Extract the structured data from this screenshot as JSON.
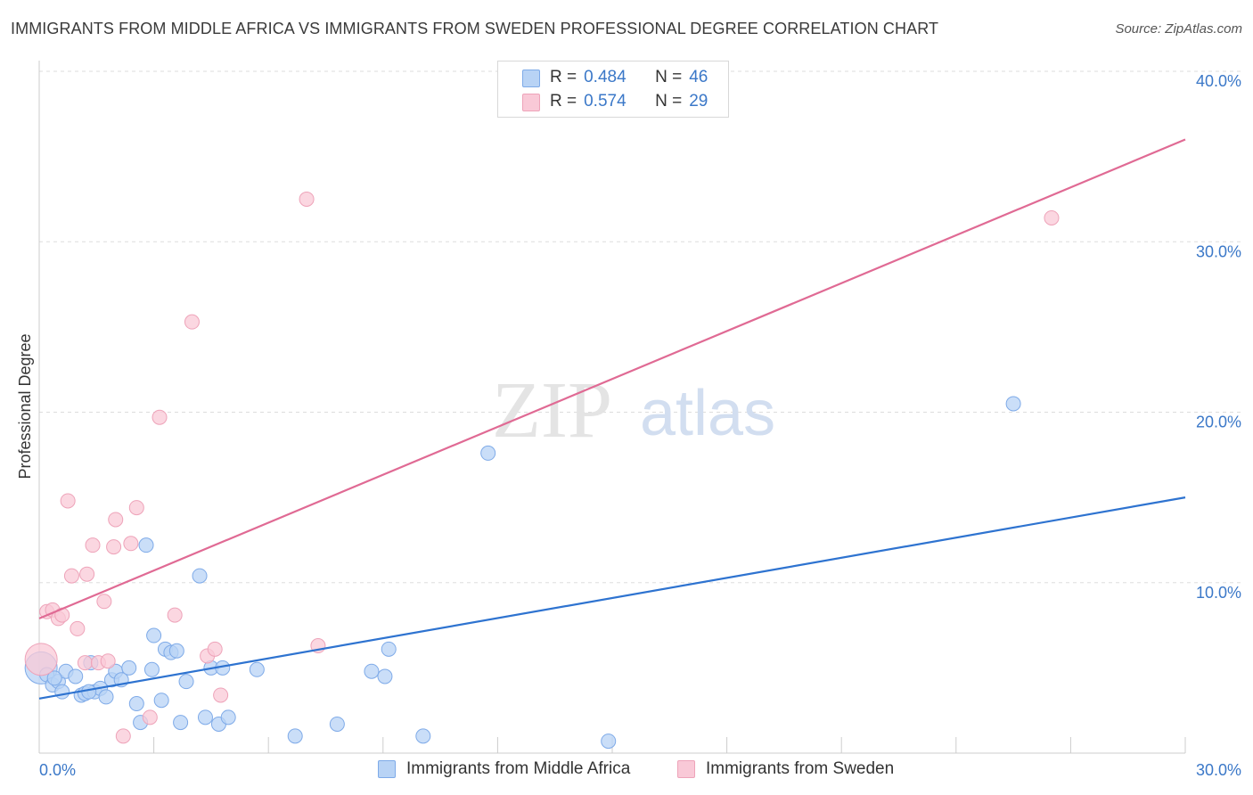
{
  "header": {
    "title": "IMMIGRANTS FROM MIDDLE AFRICA VS IMMIGRANTS FROM SWEDEN PROFESSIONAL DEGREE CORRELATION CHART",
    "source": "Source: ZipAtlas.com"
  },
  "watermark": {
    "zip": "ZIP",
    "atlas": "atlas"
  },
  "legend": {
    "r_label": "R =",
    "n_label": "N =",
    "rows": [
      {
        "r": "0.484",
        "n": "46"
      },
      {
        "r": "0.574",
        "n": "29"
      }
    ]
  },
  "colors": {
    "blue_fill": "#b8d3f5",
    "blue_stroke": "#7eaae8",
    "blue_line": "#2e73d0",
    "pink_fill": "#f9c9d7",
    "pink_stroke": "#eea3b9",
    "pink_line": "#e06a94",
    "tick_text": "#3b78c8",
    "grid": "#dddddd"
  },
  "chart_data": {
    "type": "scatter",
    "title": "IMMIGRANTS FROM MIDDLE AFRICA VS IMMIGRANTS FROM SWEDEN PROFESSIONAL DEGREE CORRELATION CHART",
    "xlabel": "",
    "ylabel": "Professional Degree",
    "xlim": [
      0,
      30
    ],
    "ylim": [
      0,
      40
    ],
    "x_tick_labels": [
      "0.0%",
      "30.0%"
    ],
    "y_ticks": [
      10,
      20,
      30,
      40
    ],
    "y_tick_labels": [
      "10.0%",
      "20.0%",
      "30.0%",
      "40.0%"
    ],
    "grid": true,
    "legend_position": "top-center",
    "series": [
      {
        "name": "Immigrants from Middle Africa",
        "color": "#b8d3f5",
        "r": 0.484,
        "n": 46,
        "trend": {
          "x": [
            0,
            30
          ],
          "y": [
            3.2,
            15.0
          ]
        },
        "points": [
          [
            0.05,
            5.0
          ],
          [
            0.2,
            4.6
          ],
          [
            0.35,
            4.0
          ],
          [
            0.5,
            4.2
          ],
          [
            0.6,
            3.6
          ],
          [
            0.7,
            4.8
          ],
          [
            0.95,
            4.5
          ],
          [
            1.1,
            3.4
          ],
          [
            1.2,
            3.5
          ],
          [
            1.35,
            5.3
          ],
          [
            1.45,
            3.6
          ],
          [
            1.6,
            3.8
          ],
          [
            1.75,
            3.3
          ],
          [
            1.9,
            4.3
          ],
          [
            2.0,
            4.8
          ],
          [
            2.15,
            4.3
          ],
          [
            2.35,
            5.0
          ],
          [
            2.55,
            2.9
          ],
          [
            2.65,
            1.8
          ],
          [
            2.8,
            12.2
          ],
          [
            2.95,
            4.9
          ],
          [
            3.0,
            6.9
          ],
          [
            3.2,
            3.1
          ],
          [
            3.3,
            6.1
          ],
          [
            3.45,
            5.9
          ],
          [
            3.6,
            6.0
          ],
          [
            3.7,
            1.8
          ],
          [
            3.85,
            4.2
          ],
          [
            4.2,
            10.4
          ],
          [
            4.35,
            2.1
          ],
          [
            4.5,
            5.0
          ],
          [
            4.7,
            1.7
          ],
          [
            4.8,
            5.0
          ],
          [
            4.95,
            2.1
          ],
          [
            5.7,
            4.9
          ],
          [
            6.7,
            1.0
          ],
          [
            7.8,
            1.7
          ],
          [
            8.7,
            4.8
          ],
          [
            9.05,
            4.5
          ],
          [
            9.15,
            6.1
          ],
          [
            10.05,
            1.0
          ],
          [
            11.75,
            17.6
          ],
          [
            14.9,
            0.7
          ],
          [
            25.5,
            20.5
          ],
          [
            0.4,
            4.4
          ],
          [
            1.3,
            3.6
          ]
        ]
      },
      {
        "name": "Immigrants from Sweden",
        "color": "#f9c9d7",
        "r": 0.574,
        "n": 29,
        "trend": {
          "x": [
            0,
            30
          ],
          "y": [
            7.9,
            36.0
          ]
        },
        "points": [
          [
            0.05,
            5.5
          ],
          [
            0.2,
            8.3
          ],
          [
            0.35,
            8.4
          ],
          [
            0.5,
            7.9
          ],
          [
            0.6,
            8.1
          ],
          [
            0.75,
            14.8
          ],
          [
            0.85,
            10.4
          ],
          [
            1.0,
            7.3
          ],
          [
            1.2,
            5.3
          ],
          [
            1.25,
            10.5
          ],
          [
            1.4,
            12.2
          ],
          [
            1.55,
            5.3
          ],
          [
            1.7,
            8.9
          ],
          [
            1.8,
            5.4
          ],
          [
            1.95,
            12.1
          ],
          [
            2.0,
            13.7
          ],
          [
            2.2,
            1.0
          ],
          [
            2.4,
            12.3
          ],
          [
            2.55,
            14.4
          ],
          [
            2.9,
            2.1
          ],
          [
            3.15,
            19.7
          ],
          [
            3.55,
            8.1
          ],
          [
            4.0,
            25.3
          ],
          [
            4.4,
            5.7
          ],
          [
            4.6,
            6.1
          ],
          [
            4.75,
            3.4
          ],
          [
            7.0,
            32.5
          ],
          [
            7.3,
            6.3
          ],
          [
            26.5,
            31.4
          ]
        ]
      }
    ]
  }
}
